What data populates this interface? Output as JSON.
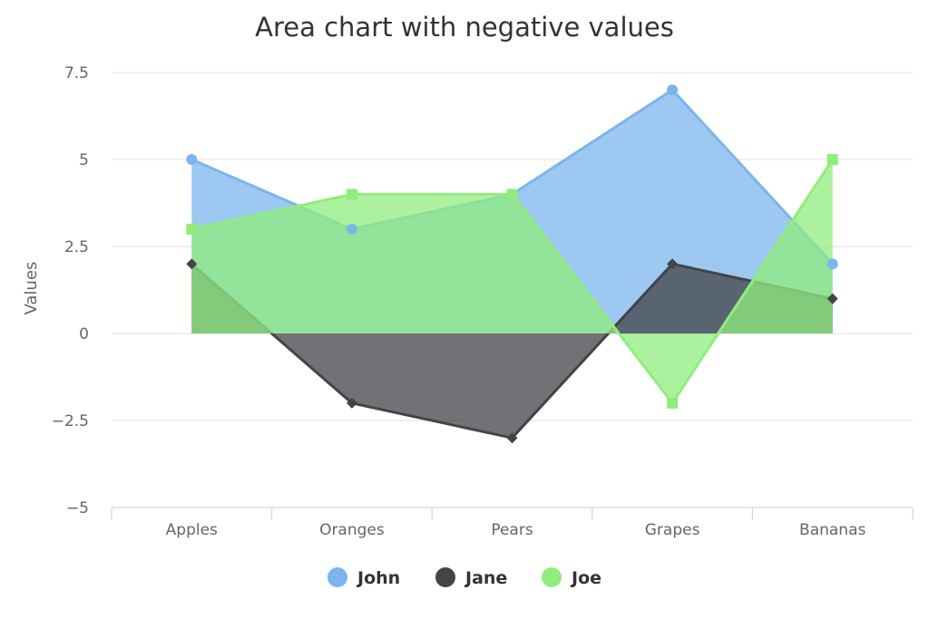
{
  "chart_data": {
    "type": "area",
    "title": "Area chart with negative values",
    "xlabel": "",
    "ylabel": "Values",
    "categories": [
      "Apples",
      "Oranges",
      "Pears",
      "Grapes",
      "Bananas"
    ],
    "ylim": [
      -5,
      7.5
    ],
    "yticks": [
      -5,
      -2.5,
      0,
      2.5,
      5,
      7.5
    ],
    "ytick_labels": [
      "−5",
      "−2.5",
      "0",
      "2.5",
      "5",
      "7.5"
    ],
    "grid": true,
    "legend_position": "bottom-center",
    "series": [
      {
        "name": "John",
        "values": [
          5,
          3,
          4,
          7,
          2
        ],
        "color": "#7cb5ec",
        "marker": "circle"
      },
      {
        "name": "Jane",
        "values": [
          2,
          -2,
          -3,
          2,
          1
        ],
        "color": "#434348",
        "marker": "diamond"
      },
      {
        "name": "Joe",
        "values": [
          3,
          4,
          4,
          -2,
          5
        ],
        "color": "#90ed7d",
        "marker": "square"
      }
    ]
  }
}
